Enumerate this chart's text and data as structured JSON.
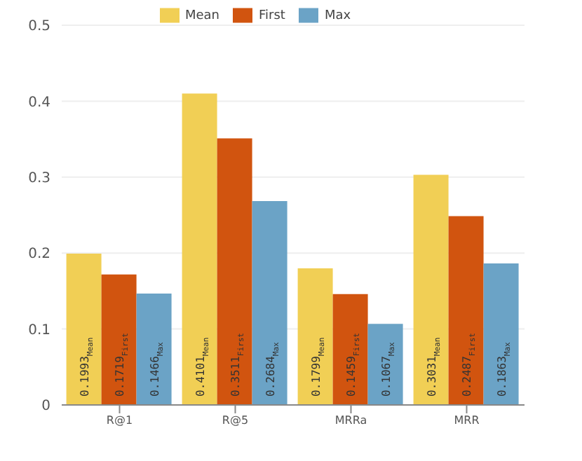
{
  "chart_data": {
    "type": "bar",
    "categories": [
      "R@1",
      "R@5",
      "MRRa",
      "MRR"
    ],
    "series": [
      {
        "name": "Mean",
        "color": "#f1cf55",
        "values": [
          0.1993,
          0.4101,
          0.1799,
          0.3031
        ],
        "value_labels": [
          "0.1993$_{Mean}$",
          "0.4101$_{Mean}$",
          "0.1799$_{Mean}$",
          "0.3031$_{Mean}$"
        ]
      },
      {
        "name": "First",
        "color": "#d1540f",
        "values": [
          0.1719,
          0.3511,
          0.1459,
          0.2487
        ],
        "value_labels": [
          "0.1719$_{First}$",
          "0.3511$_{First}$",
          "0.1459$_{First}$",
          "0.2487$_{First}$"
        ]
      },
      {
        "name": "Max",
        "color": "#6ba3c6",
        "values": [
          0.1466,
          0.2684,
          0.1067,
          0.1863
        ],
        "value_labels": [
          "0.1466$_{Max}$",
          "0.2684$_{Max}$",
          "0.1067$_{Max}$",
          "0.1863$_{Max}$"
        ]
      }
    ],
    "ylim": [
      0,
      0.5
    ],
    "yticks": [
      0,
      0.1,
      0.2,
      0.3,
      0.4,
      0.5
    ],
    "grid": "y",
    "legend": "top"
  }
}
